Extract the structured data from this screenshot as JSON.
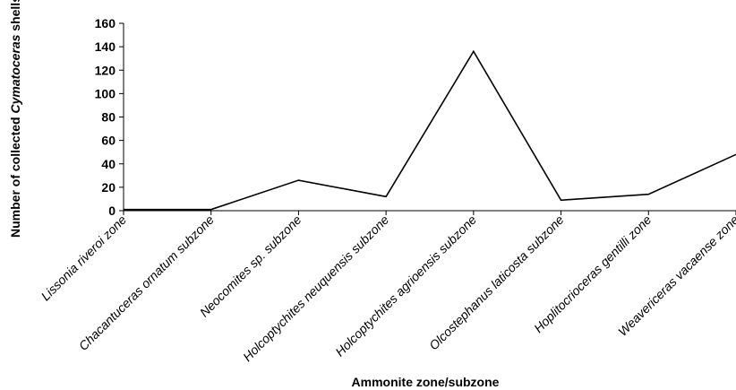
{
  "chart_data": {
    "type": "line",
    "categories": [
      "Lissonia riveroi zone",
      "Chacantuceras ornatum subzone",
      "Neocomites sp. subzone",
      "Holcoptychites neuquensis subzone",
      "Holcoptychites agrioensis subzone",
      "Olcostephanus laticosta subzone",
      "Hoplitocrioceras gentilli zone",
      "Weavericeras vacaense zone"
    ],
    "series": [
      {
        "values": [
          1,
          1,
          26,
          12,
          136,
          9,
          14,
          48
        ]
      }
    ],
    "xlabel": "Ammonite zone/subzone",
    "ylabel": {
      "prefix": "Number of collected ",
      "italic": "Cymatoceras",
      "suffix": " shells"
    },
    "ylim": [
      0,
      160
    ],
    "yticks": [
      0,
      20,
      40,
      60,
      80,
      100,
      120,
      140,
      160
    ],
    "grid": false,
    "legend": "none",
    "colors": {
      "line": "#000000",
      "axis": "#000000"
    }
  }
}
